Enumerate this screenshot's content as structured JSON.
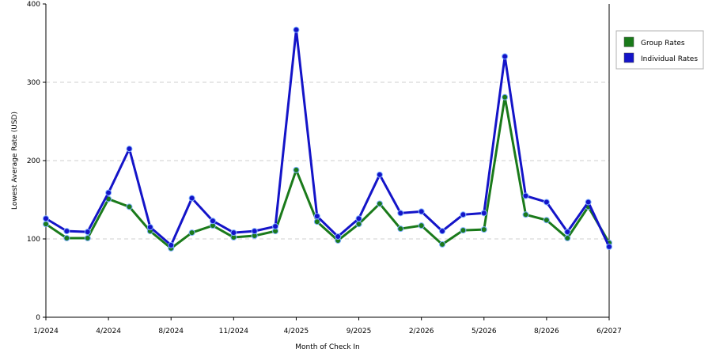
{
  "chart_data": {
    "type": "line",
    "xlabel": "Month of Check In",
    "ylabel": "Lowest Average Rate (USD)",
    "ylim": [
      0,
      400
    ],
    "yticks": [
      0,
      100,
      200,
      300,
      400
    ],
    "grid": "horizontal dashed",
    "legend_position": "top-right",
    "x_tick_labels": [
      "1/2024",
      "4/2024",
      "8/2024",
      "11/2024",
      "4/2025",
      "9/2025",
      "2/2026",
      "5/2026",
      "8/2026",
      "6/2027"
    ],
    "x_tick_index": [
      0,
      3,
      6,
      9,
      12,
      15,
      18,
      21,
      24,
      27
    ],
    "series": [
      {
        "name": "Group Rates",
        "color": "#1a7a1a",
        "values": [
          119,
          101,
          101,
          151,
          141,
          110,
          88,
          108,
          117,
          102,
          104,
          110,
          188,
          122,
          98,
          119,
          145,
          113,
          117,
          93,
          111,
          112,
          281,
          131,
          124,
          101,
          141,
          95
        ]
      },
      {
        "name": "Individual Rates",
        "color": "#1414c8",
        "values": [
          126,
          110,
          109,
          159,
          215,
          115,
          92,
          152,
          123,
          108,
          110,
          116,
          367,
          129,
          103,
          126,
          182,
          133,
          135,
          110,
          131,
          133,
          333,
          155,
          147,
          109,
          147,
          90
        ]
      }
    ]
  }
}
